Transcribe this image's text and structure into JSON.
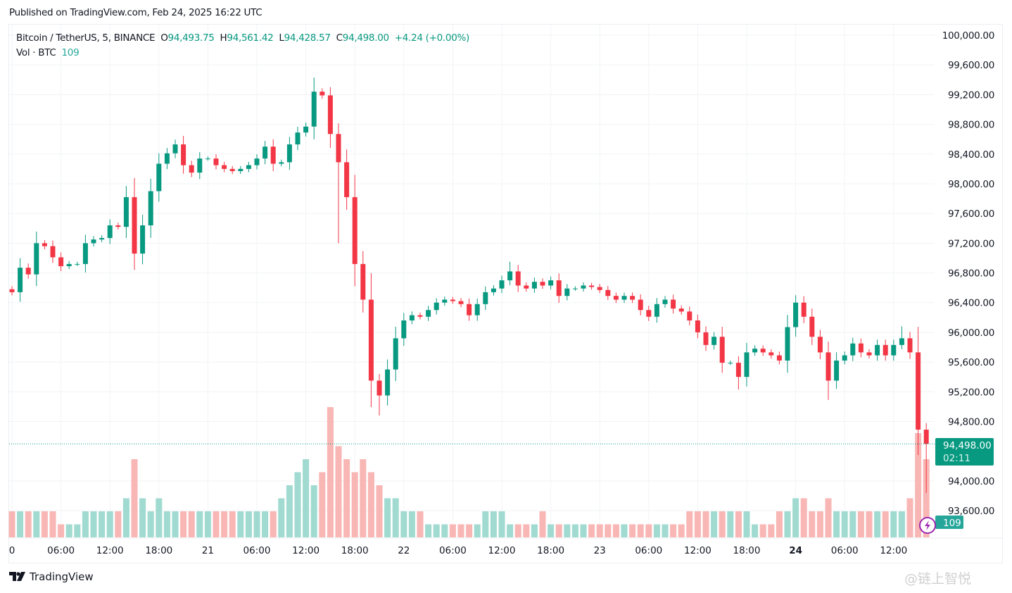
{
  "published": "Published on TradingView.com, Feb 24, 2025 16:22 UTC",
  "legend": {
    "symbol": "Bitcoin / TetherUS, 5, BINANCE",
    "open_label": "O",
    "open": "94,493.75",
    "high_label": "H",
    "high": "94,561.42",
    "low_label": "L",
    "low": "94,428.57",
    "close_label": "C",
    "close": "94,498.00",
    "change": "+4.24 (+0.00%)",
    "vol_label": "Vol · BTC",
    "vol_value": "109"
  },
  "last_price": {
    "price": "94,498.00",
    "countdown": "02:11",
    "color": "#089981"
  },
  "volume_badge": {
    "value": "109",
    "color": "#26a69a"
  },
  "logo_text": "TradingView",
  "watermark": "@链上智悦",
  "colors": {
    "up": "#089981",
    "down": "#f23645",
    "vol_up": "#8fd3c8",
    "vol_down": "#f7a9a7",
    "grid": "#f2f3f5",
    "lightning": "#9c27b0"
  },
  "chart_data": {
    "type": "candlestick",
    "interval": "5",
    "price_axis": {
      "ylim": [
        93400,
        100150
      ],
      "ticks": [
        "100,000.00",
        "99,600.00",
        "99,200.00",
        "98,800.00",
        "98,400.00",
        "98,000.00",
        "97,600.00",
        "97,200.00",
        "96,800.00",
        "96,400.00",
        "96,000.00",
        "95,600.00",
        "95,200.00",
        "94,800.00",
        "94,000.00",
        "93,600.00"
      ],
      "tick_values": [
        100000,
        99600,
        99200,
        98800,
        98400,
        98000,
        97600,
        97200,
        96800,
        96400,
        96000,
        95600,
        95200,
        94800,
        94000,
        93600
      ]
    },
    "time_axis": {
      "start": "2025-02-20 00:00",
      "ticks": [
        "0",
        "06:00",
        "12:00",
        "18:00",
        "21",
        "06:00",
        "12:00",
        "18:00",
        "22",
        "06:00",
        "12:00",
        "18:00",
        "23",
        "06:00",
        "12:00",
        "18:00",
        "24",
        "06:00",
        "12:00"
      ],
      "tick_hours": [
        0,
        6,
        12,
        18,
        24,
        30,
        36,
        42,
        48,
        54,
        60,
        66,
        72,
        78,
        84,
        90,
        96,
        102,
        108
      ],
      "bold_ticks": [
        "24"
      ]
    },
    "sample_step": "1h",
    "close": [
      96540,
      96870,
      96780,
      97200,
      97160,
      97010,
      96890,
      96920,
      96920,
      97200,
      97250,
      97270,
      97440,
      97420,
      97820,
      97060,
      97440,
      97900,
      98270,
      98410,
      98530,
      98250,
      98150,
      98340,
      98340,
      98250,
      98200,
      98170,
      98200,
      98250,
      98340,
      98500,
      98270,
      98290,
      98530,
      98690,
      98770,
      99240,
      99190,
      98670,
      98290,
      97820,
      96920,
      96440,
      95350,
      95150,
      95500,
      95920,
      96160,
      96230,
      96210,
      96300,
      96400,
      96440,
      96420,
      96380,
      96230,
      96380,
      96540,
      96590,
      96700,
      96820,
      96630,
      96590,
      96680,
      96630,
      96700,
      96490,
      96590,
      96590,
      96630,
      96610,
      96570,
      96490,
      96440,
      96490,
      96440,
      96300,
      96210,
      96380,
      96440,
      96320,
      96280,
      96160,
      96000,
      95830,
      95940,
      95590,
      95590,
      95400,
      95730,
      95780,
      95730,
      95690,
      95620,
      96070,
      96400,
      96210,
      95940,
      95730,
      95350,
      95620,
      95690,
      95850,
      95730,
      95690,
      95830,
      95690,
      95830,
      95920,
      95730,
      94690,
      94498
    ],
    "high_extremes": {
      "37": 99430,
      "39": 99300,
      "61": 96950,
      "96": 96500,
      "109": 96080
    },
    "low_extremes": {
      "15": 96840,
      "40": 97200,
      "45": 94880,
      "89": 95230,
      "100": 95090,
      "112": 93840
    },
    "volume_relative": [
      2,
      2,
      2,
      2,
      2,
      2,
      1,
      1,
      1,
      2,
      2,
      2,
      2,
      2,
      3,
      6,
      3,
      2,
      3,
      2,
      2,
      2,
      2,
      2,
      2,
      2,
      2,
      2,
      2,
      2,
      2,
      2,
      2,
      3,
      4,
      5,
      6,
      4,
      5,
      10,
      7,
      6,
      5,
      6,
      5,
      4,
      3,
      3,
      2,
      2,
      2,
      1,
      1,
      1,
      1,
      1,
      1,
      1,
      2,
      2,
      2,
      1,
      1,
      1,
      1,
      2,
      1,
      1,
      1,
      1,
      1,
      1,
      1,
      1,
      1,
      1,
      1,
      1,
      1,
      1,
      1,
      1,
      1,
      2,
      2,
      2,
      2,
      2,
      2,
      2,
      2,
      1,
      1,
      1,
      2,
      2,
      3,
      3,
      2,
      2,
      3,
      2,
      2,
      2,
      2,
      2,
      2,
      2,
      2,
      2,
      3,
      8,
      6
    ]
  }
}
